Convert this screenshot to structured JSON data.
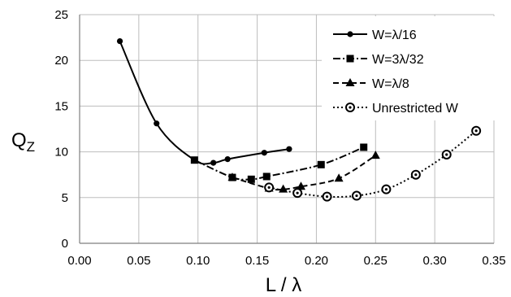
{
  "chart_data": {
    "type": "line",
    "xlabel": "L / λ",
    "ylabel_main": "Q",
    "ylabel_sub": "Z",
    "xlim": [
      0,
      0.35
    ],
    "ylim": [
      0,
      25
    ],
    "xticks": [
      "0.00",
      "0.05",
      "0.10",
      "0.15",
      "0.20",
      "0.25",
      "0.30",
      "0.35"
    ],
    "yticks": [
      "0",
      "5",
      "10",
      "15",
      "20",
      "25"
    ],
    "grid": "both",
    "legend_position": "top-right",
    "series": [
      {
        "name": "W=λ/16",
        "marker": "circle",
        "dash": "solid",
        "color": "#000000",
        "x": [
          0.034,
          0.065,
          0.097,
          0.113,
          0.125,
          0.156,
          0.177
        ],
        "y": [
          22.1,
          13.1,
          9.1,
          8.8,
          9.2,
          9.9,
          10.3
        ]
      },
      {
        "name": "W=3λ/32",
        "marker": "square",
        "dash": "dashdot",
        "color": "#000000",
        "x": [
          0.097,
          0.129,
          0.145,
          0.158,
          0.204,
          0.24
        ],
        "y": [
          9.1,
          7.2,
          7.0,
          7.3,
          8.6,
          10.5
        ]
      },
      {
        "name": "W=λ/8",
        "marker": "triangle",
        "dash": "dash",
        "color": "#000000",
        "x": [
          0.129,
          0.16,
          0.172,
          0.187,
          0.219,
          0.25
        ],
        "y": [
          7.2,
          6.0,
          5.9,
          6.2,
          7.1,
          9.6
        ]
      },
      {
        "name": "Unrestricted W",
        "marker": "ring",
        "dash": "dot",
        "color": "#000000",
        "x": [
          0.16,
          0.184,
          0.209,
          0.234,
          0.259,
          0.284,
          0.31,
          0.335
        ],
        "y": [
          6.1,
          5.5,
          5.1,
          5.2,
          5.9,
          7.5,
          9.7,
          12.3
        ]
      }
    ]
  }
}
